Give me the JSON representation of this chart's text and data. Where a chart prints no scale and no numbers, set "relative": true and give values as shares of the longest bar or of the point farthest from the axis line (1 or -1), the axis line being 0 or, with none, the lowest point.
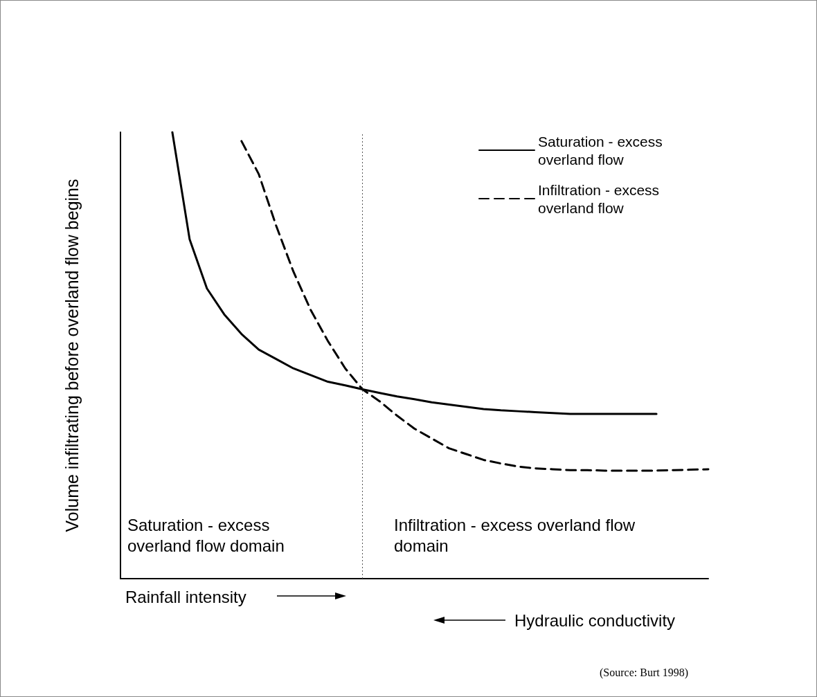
{
  "chart_data": {
    "type": "line",
    "relative": true,
    "grid": false,
    "legend": "top right",
    "marker": "none",
    "ylabel": "Volume infiltrating before overland flow begins",
    "categories": [
      null,
      null,
      null,
      null,
      null,
      null,
      null,
      null,
      null,
      null,
      null,
      null,
      null,
      null,
      null,
      null,
      null,
      null,
      null,
      null,
      null,
      null,
      null,
      null,
      null,
      null,
      null,
      null,
      null,
      null,
      null,
      null,
      null,
      null,
      null
    ],
    "series": [
      {
        "name": "Saturation - excess overland flow",
        "color": "#000000",
        "line_style": "solid",
        "values": [
          null,
          null,
          null,
          1.0,
          0.76,
          0.65,
          0.592,
          0.548,
          0.513,
          0.492,
          0.471,
          0.456,
          0.441,
          0.433,
          0.424,
          0.416,
          0.408,
          0.402,
          0.395,
          0.39,
          0.385,
          0.38,
          0.377,
          0.375,
          0.373,
          0.371,
          0.369,
          0.369,
          0.369,
          0.369,
          0.369,
          0.369,
          null,
          null,
          null
        ]
      },
      {
        "name": "Infiltration - excess overland flow",
        "color": "#000000",
        "line_style": "dashed",
        "values": [
          null,
          null,
          null,
          null,
          null,
          null,
          null,
          0.98,
          0.906,
          0.791,
          0.688,
          0.602,
          0.532,
          0.471,
          0.424,
          0.397,
          0.365,
          0.336,
          0.314,
          0.292,
          0.279,
          0.266,
          0.258,
          0.251,
          0.247,
          0.245,
          0.243,
          0.243,
          0.242,
          0.242,
          0.242,
          0.242,
          0.243,
          0.244,
          0.245
        ]
      }
    ],
    "annotations": [
      "Saturation - excess overland flow domain",
      "Infiltration - excess overland flow domain",
      "Rainfall intensity",
      "Hydraulic conductivity",
      "(Source: Burt 1998)"
    ]
  }
}
